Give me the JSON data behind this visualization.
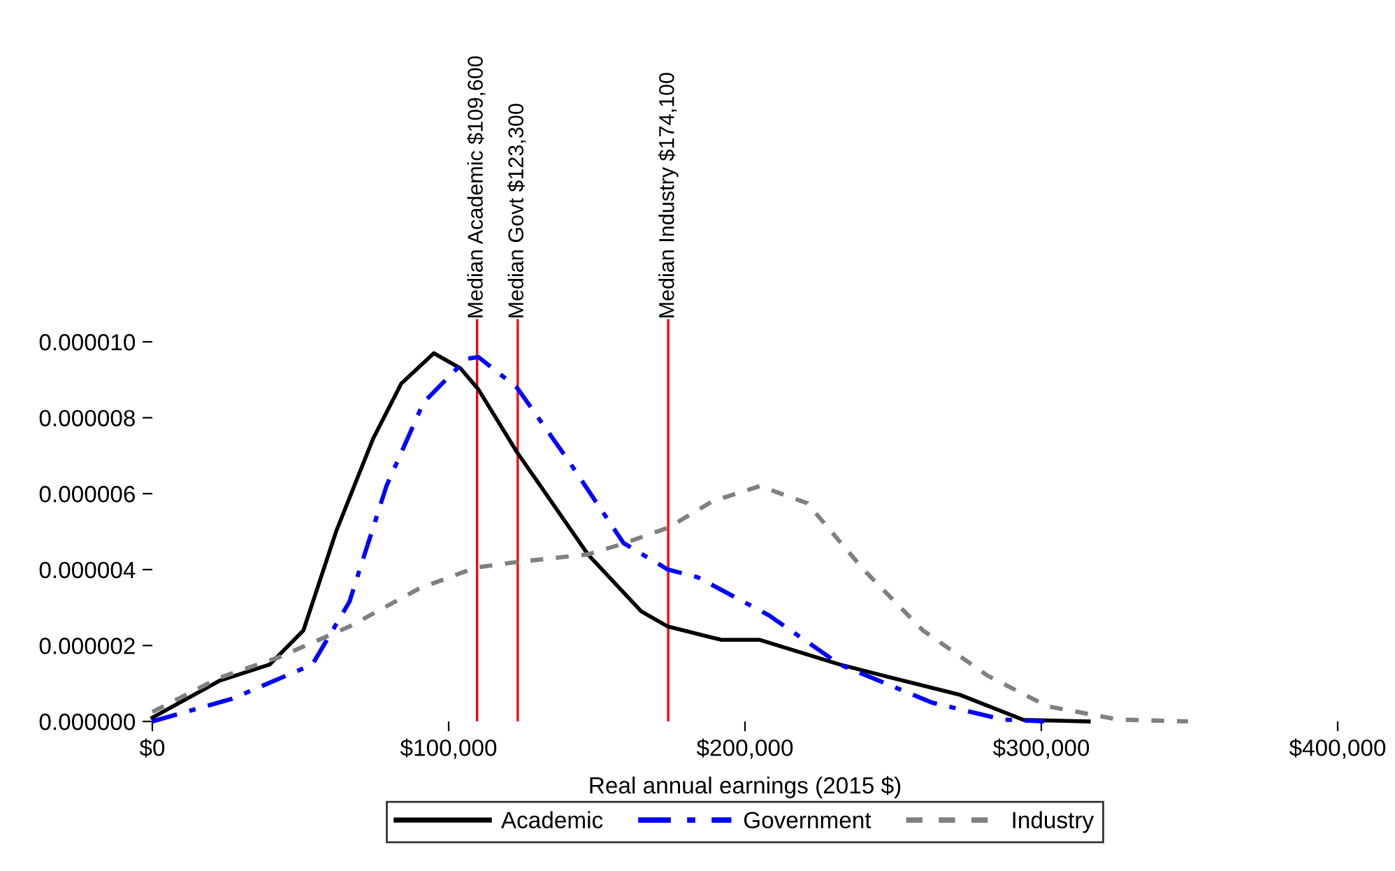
{
  "chart_data": {
    "type": "line",
    "xlabel": "Real annual earnings (2015 $)",
    "series": [
      {
        "name": "Academic",
        "color": "#000000",
        "line_style": "solid",
        "x": [
          0,
          22600,
          39600,
          51000,
          62000,
          74500,
          84000,
          95000,
          104000,
          110000,
          123000,
          147000,
          165000,
          174000,
          192000,
          205000,
          232000,
          247000,
          272600,
          294000,
          316000
        ],
        "values": [
          1e-07,
          1.07e-06,
          1.5e-06,
          2.4e-06,
          5e-06,
          7.45e-06,
          8.9e-06,
          9.7e-06,
          9.3e-06,
          8.75e-06,
          7.1e-06,
          4.4e-06,
          2.9e-06,
          2.5e-06,
          2.15e-06,
          2.15e-06,
          1.5e-06,
          1.2e-06,
          7e-07,
          4e-08,
          0
        ]
      },
      {
        "name": "Government",
        "color": "#0000ff",
        "line_style": "dashdot",
        "x": [
          0,
          27000,
          54000,
          66500,
          79000,
          91500,
          106000,
          110000,
          123000,
          140600,
          159000,
          174000,
          184000,
          208000,
          232000,
          263000,
          287000,
          301000
        ],
        "values": [
          0,
          6e-07,
          1.5e-06,
          3.15e-06,
          6.2e-06,
          8.4e-06,
          9.55e-06,
          9.6e-06,
          8.8e-06,
          6.85e-06,
          4.7e-06,
          4e-06,
          3.8e-06,
          2.8e-06,
          1.5e-06,
          5e-07,
          5e-08,
          0
        ]
      },
      {
        "name": "Industry",
        "color": "#808080",
        "line_style": "dashed",
        "x": [
          0,
          22600,
          43000,
          66500,
          90000,
          109000,
          123000,
          147000,
          157500,
          174000,
          189000,
          205000,
          221000,
          240000,
          260000,
          282000,
          302000,
          326000,
          349500
        ],
        "values": [
          2.5e-07,
          1.15e-06,
          1.7e-06,
          2.5e-06,
          3.5e-06,
          4.05e-06,
          4.2e-06,
          4.4e-06,
          4.65e-06,
          5.1e-06,
          5.8e-06,
          6.2e-06,
          5.75e-06,
          4e-06,
          2.4e-06,
          1.2e-06,
          4e-07,
          5e-08,
          0
        ]
      }
    ],
    "xlim": [
      0,
      400000
    ],
    "xticks": [
      {
        "value": 0,
        "label": "$0"
      },
      {
        "value": 100000,
        "label": "$100,000"
      },
      {
        "value": 200000,
        "label": "$200,000"
      },
      {
        "value": 300000,
        "label": "$300,000"
      },
      {
        "value": 400000,
        "label": "$400,000"
      }
    ],
    "ylim": [
      0,
      1.06e-05
    ],
    "yticks": [
      {
        "value": 0,
        "label": "0.000000"
      },
      {
        "value": 2e-06,
        "label": "0.000002"
      },
      {
        "value": 4e-06,
        "label": "0.000004"
      },
      {
        "value": 6e-06,
        "label": "0.000006"
      },
      {
        "value": 8e-06,
        "label": "0.000008"
      },
      {
        "value": 1e-05,
        "label": "0.000010"
      }
    ],
    "ref_lines": [
      {
        "axis": "x",
        "value": 109600,
        "label": "Median Academic $109,600",
        "color": "#ff0000"
      },
      {
        "axis": "x",
        "value": 123300,
        "label": "Median Govt $123,300",
        "color": "#ff0000"
      },
      {
        "axis": "x",
        "value": 174100,
        "label": "Median Industry $174,100",
        "color": "#ff0000"
      }
    ],
    "grid": false,
    "legend": "bottom"
  }
}
